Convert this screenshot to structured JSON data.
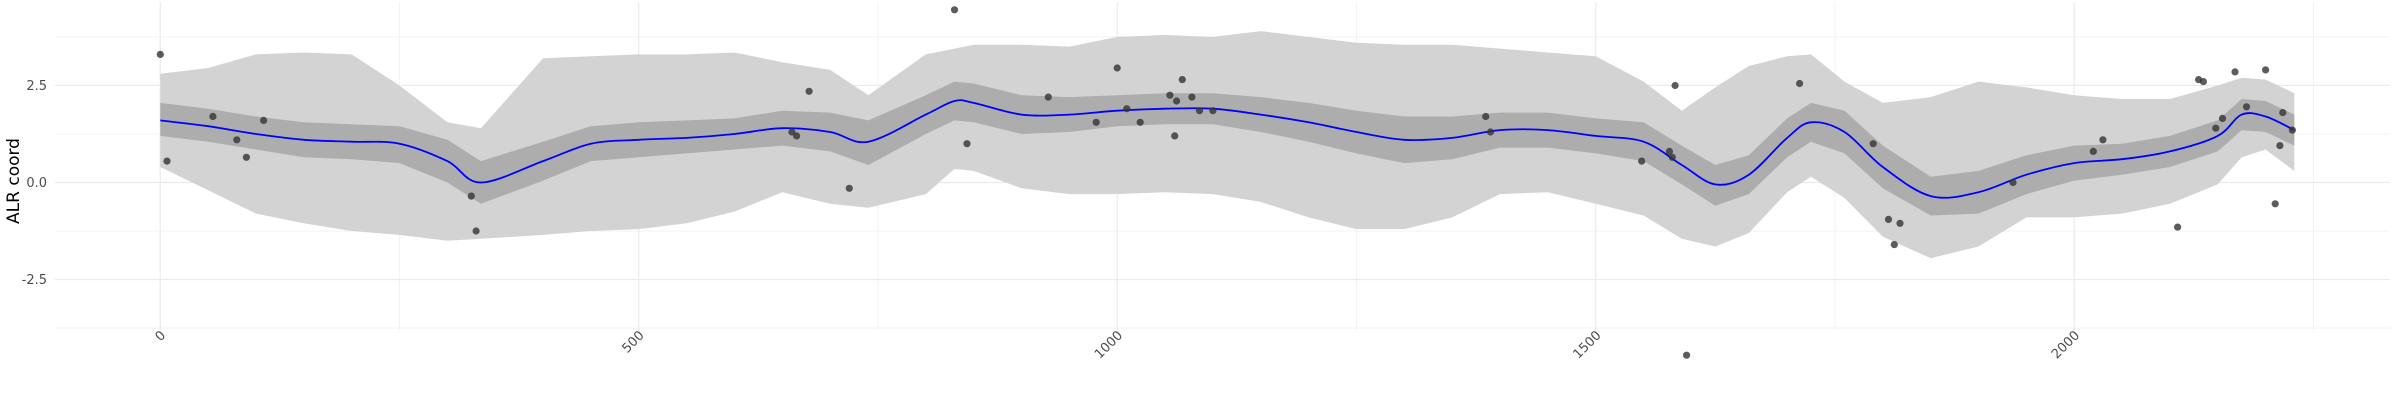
{
  "chart_data": {
    "type": "scatter",
    "title": "",
    "xlabel": "",
    "ylabel": "ALR coord",
    "xlim": [
      -110,
      2330
    ],
    "ylim": [
      -3.8,
      4.65
    ],
    "x_ticks": [
      0,
      500,
      1000,
      1500,
      2000
    ],
    "x_tick_labels": [
      "0",
      "500",
      "1000",
      "1500",
      "2000"
    ],
    "y_ticks": [
      -2.5,
      0,
      2.5
    ],
    "y_tick_labels": [
      "-2.5",
      "0.0",
      "2.5"
    ],
    "grid": true,
    "colors": {
      "trend": "#0000ff",
      "inner_band": "#adadad",
      "outer_band": "#d3d3d3",
      "points": "#333333",
      "grid": "#ebebeb"
    },
    "series": [
      {
        "kind": "points",
        "x": [
          0,
          7,
          55,
          80,
          90,
          108,
          325,
          330,
          660,
          665,
          678,
          720,
          830,
          843,
          928,
          978,
          1000,
          1010,
          1024,
          1055,
          1060,
          1062,
          1068,
          1078,
          1086,
          1100,
          1385,
          1390,
          1548,
          1577,
          1580,
          1583,
          1595,
          1713,
          1790,
          1806,
          1812,
          1818,
          1936,
          2020,
          2030,
          2108,
          2130,
          2135,
          2148,
          2155,
          2168,
          2180,
          2200,
          2210,
          2215,
          2218,
          2228
        ],
        "y": [
          3.3,
          0.55,
          1.7,
          1.1,
          0.65,
          1.6,
          -0.35,
          -1.25,
          1.3,
          1.2,
          2.35,
          -0.15,
          4.45,
          1.0,
          2.2,
          1.55,
          2.95,
          1.9,
          1.55,
          2.25,
          1.2,
          2.1,
          2.65,
          2.2,
          1.85,
          1.85,
          1.7,
          1.3,
          0.55,
          0.8,
          0.65,
          2.5,
          -4.45,
          2.55,
          1.0,
          -0.95,
          -1.6,
          -1.05,
          0.0,
          0.8,
          1.1,
          -1.15,
          2.65,
          2.6,
          1.4,
          1.65,
          2.85,
          1.95,
          2.9,
          -0.55,
          0.95,
          1.8,
          1.35
        ]
      },
      {
        "kind": "trend",
        "x": [
          0,
          50,
          100,
          150,
          200,
          250,
          300,
          335,
          400,
          450,
          500,
          550,
          600,
          650,
          700,
          740,
          800,
          830,
          850,
          900,
          950,
          1000,
          1050,
          1100,
          1150,
          1200,
          1250,
          1300,
          1350,
          1400,
          1450,
          1500,
          1550,
          1590,
          1625,
          1660,
          1700,
          1725,
          1760,
          1800,
          1850,
          1900,
          1950,
          2000,
          2050,
          2100,
          2150,
          2175,
          2200,
          2230
        ],
        "y": [
          1.6,
          1.45,
          1.25,
          1.1,
          1.05,
          1.0,
          0.55,
          0.0,
          0.55,
          1.0,
          1.1,
          1.15,
          1.25,
          1.4,
          1.3,
          1.05,
          1.75,
          2.1,
          2.05,
          1.75,
          1.75,
          1.85,
          1.9,
          1.9,
          1.75,
          1.55,
          1.3,
          1.1,
          1.15,
          1.35,
          1.35,
          1.2,
          1.05,
          0.45,
          -0.05,
          0.2,
          1.15,
          1.55,
          1.3,
          0.4,
          -0.35,
          -0.25,
          0.2,
          0.5,
          0.6,
          0.8,
          1.2,
          1.75,
          1.7,
          1.35
        ]
      },
      {
        "kind": "inner_band",
        "x": [
          0,
          50,
          100,
          150,
          200,
          250,
          300,
          335,
          400,
          450,
          500,
          550,
          600,
          650,
          700,
          740,
          800,
          830,
          850,
          900,
          950,
          1000,
          1050,
          1100,
          1150,
          1200,
          1250,
          1300,
          1350,
          1400,
          1450,
          1500,
          1550,
          1590,
          1625,
          1660,
          1700,
          1725,
          1760,
          1800,
          1850,
          1900,
          1950,
          2000,
          2050,
          2100,
          2150,
          2175,
          2200,
          2230
        ],
        "lower": [
          1.2,
          1.05,
          0.85,
          0.65,
          0.6,
          0.5,
          0.0,
          -0.55,
          0.05,
          0.55,
          0.65,
          0.75,
          0.85,
          0.95,
          0.8,
          0.45,
          1.25,
          1.6,
          1.55,
          1.25,
          1.3,
          1.45,
          1.5,
          1.5,
          1.3,
          1.05,
          0.75,
          0.5,
          0.6,
          0.9,
          0.9,
          0.75,
          0.55,
          -0.05,
          -0.6,
          -0.3,
          0.65,
          1.05,
          0.75,
          -0.15,
          -0.85,
          -0.8,
          -0.3,
          0.05,
          0.2,
          0.4,
          0.8,
          1.35,
          1.3,
          0.95
        ],
        "upper": [
          2.05,
          1.9,
          1.7,
          1.55,
          1.5,
          1.45,
          1.1,
          0.55,
          1.05,
          1.45,
          1.55,
          1.6,
          1.65,
          1.85,
          1.8,
          1.6,
          2.25,
          2.6,
          2.55,
          2.25,
          2.2,
          2.25,
          2.3,
          2.3,
          2.2,
          2.05,
          1.85,
          1.7,
          1.7,
          1.8,
          1.8,
          1.65,
          1.55,
          0.95,
          0.45,
          0.7,
          1.65,
          2.05,
          1.85,
          0.95,
          0.15,
          0.3,
          0.7,
          0.95,
          1.0,
          1.2,
          1.6,
          2.15,
          2.1,
          1.75
        ]
      },
      {
        "kind": "outer_band",
        "x": [
          0,
          50,
          100,
          150,
          200,
          250,
          300,
          335,
          400,
          450,
          500,
          550,
          600,
          650,
          700,
          740,
          800,
          830,
          850,
          900,
          950,
          1000,
          1050,
          1100,
          1150,
          1200,
          1250,
          1300,
          1350,
          1400,
          1450,
          1500,
          1550,
          1590,
          1625,
          1660,
          1700,
          1725,
          1760,
          1800,
          1850,
          1900,
          1950,
          2000,
          2050,
          2100,
          2150,
          2175,
          2200,
          2230
        ],
        "lower": [
          0.4,
          -0.2,
          -0.8,
          -1.05,
          -1.25,
          -1.35,
          -1.5,
          -1.45,
          -1.35,
          -1.25,
          -1.2,
          -1.05,
          -0.75,
          -0.25,
          -0.55,
          -0.65,
          -0.3,
          0.35,
          0.3,
          -0.15,
          -0.3,
          -0.3,
          -0.25,
          -0.3,
          -0.5,
          -0.9,
          -1.2,
          -1.2,
          -0.9,
          -0.3,
          -0.25,
          -0.55,
          -0.85,
          -1.45,
          -1.65,
          -1.3,
          -0.25,
          0.15,
          -0.4,
          -1.4,
          -1.95,
          -1.65,
          -0.9,
          -0.9,
          -0.8,
          -0.55,
          -0.05,
          0.65,
          0.85,
          0.3
        ],
        "upper": [
          2.8,
          2.95,
          3.3,
          3.35,
          3.3,
          2.5,
          1.55,
          1.4,
          3.2,
          3.25,
          3.3,
          3.3,
          3.35,
          3.1,
          2.9,
          2.25,
          3.3,
          3.45,
          3.55,
          3.55,
          3.5,
          3.75,
          3.8,
          3.75,
          3.9,
          3.75,
          3.6,
          3.55,
          3.55,
          3.45,
          3.35,
          3.25,
          2.6,
          1.85,
          2.45,
          3.0,
          3.25,
          3.3,
          2.6,
          2.05,
          2.2,
          2.6,
          2.45,
          2.25,
          2.15,
          2.15,
          2.5,
          2.7,
          2.65,
          2.3
        ]
      }
    ]
  }
}
